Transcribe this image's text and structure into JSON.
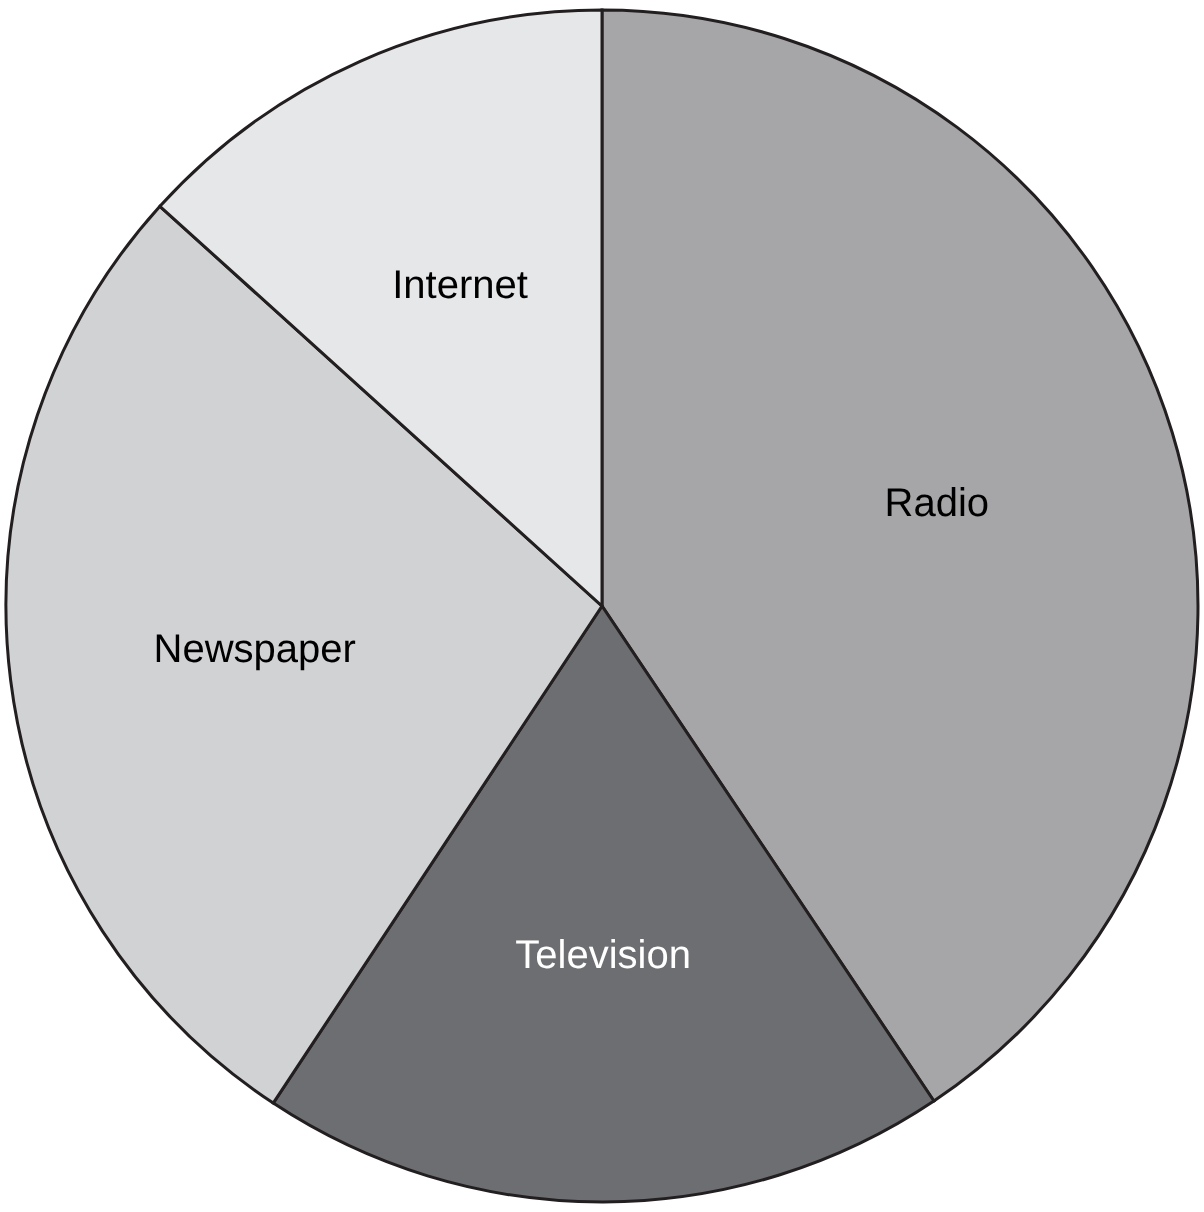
{
  "chart_data": {
    "type": "pie",
    "categories": [
      "Radio",
      "Television",
      "Newspaper",
      "Internet"
    ],
    "values": [
      40.6,
      18.7,
      27.4,
      13.3
    ],
    "colors": [
      "#a6a6a8",
      "#6d6e71",
      "#d1d2d4",
      "#e6e7e8"
    ]
  }
}
